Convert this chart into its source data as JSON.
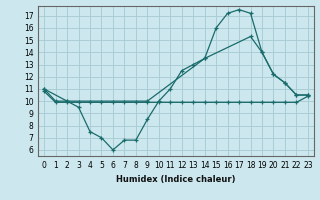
{
  "xlabel": "Humidex (Indice chaleur)",
  "bg_color": "#cce8ee",
  "grid_color": "#aacdd5",
  "line_color": "#1a6b6b",
  "xlim": [
    -0.5,
    23.5
  ],
  "ylim": [
    5.5,
    17.8
  ],
  "xticks": [
    0,
    1,
    2,
    3,
    4,
    5,
    6,
    7,
    8,
    9,
    10,
    11,
    12,
    13,
    14,
    15,
    16,
    17,
    18,
    19,
    20,
    21,
    22,
    23
  ],
  "yticks": [
    6,
    7,
    8,
    9,
    10,
    11,
    12,
    13,
    14,
    15,
    16,
    17
  ],
  "line1_x": [
    0,
    1,
    2,
    3,
    4,
    5,
    6,
    7,
    8,
    9,
    10,
    11,
    12,
    13,
    14,
    15,
    16,
    17,
    18,
    19,
    20,
    21,
    22,
    23
  ],
  "line1_y": [
    11.0,
    10.0,
    10.0,
    9.5,
    7.5,
    7.0,
    6.0,
    6.8,
    6.8,
    8.5,
    10.0,
    11.0,
    12.5,
    13.0,
    13.5,
    16.0,
    17.2,
    17.5,
    17.2,
    14.0,
    12.2,
    11.5,
    10.5,
    10.5
  ],
  "line2_x": [
    0,
    2,
    9,
    14,
    18,
    19,
    20,
    21,
    22,
    23
  ],
  "line2_y": [
    11.0,
    10.0,
    10.0,
    13.5,
    15.3,
    14.0,
    12.2,
    11.5,
    10.5,
    10.5
  ],
  "line3_x": [
    0,
    1,
    2,
    3,
    4,
    5,
    6,
    7,
    8,
    9,
    10,
    11,
    12,
    13,
    14,
    15,
    16,
    17,
    18,
    19,
    20,
    21,
    22,
    23
  ],
  "line3_y": [
    10.8,
    9.9,
    9.9,
    9.9,
    9.9,
    9.9,
    9.9,
    9.9,
    9.9,
    9.9,
    9.9,
    9.9,
    9.9,
    9.9,
    9.9,
    9.9,
    9.9,
    9.9,
    9.9,
    9.9,
    9.9,
    9.9,
    9.9,
    10.4
  ]
}
